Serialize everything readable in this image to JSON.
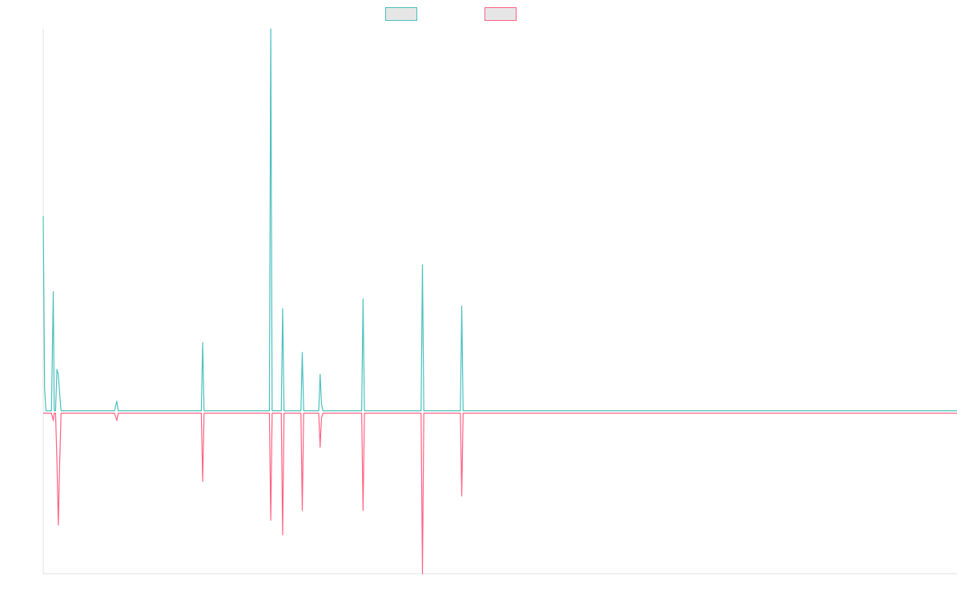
{
  "colors": {
    "series_a": "#4bc0c0",
    "series_b": "#ff6384",
    "axis": "#e0e0e0",
    "legend_fill": "#e6e6e6"
  },
  "chart_data": {
    "type": "line",
    "title": "",
    "xlabel": "",
    "ylabel": "",
    "grid": false,
    "legend_position": "top",
    "x_range": [
      0,
      1000
    ],
    "ylim": [
      -0.66,
      1.58
    ],
    "x_ticks_shown": false,
    "y_ticks_shown": false,
    "series": [
      {
        "color": "#4bc0c0",
        "points": [
          [
            0,
            0.81
          ],
          [
            1.5,
            0.1
          ],
          [
            3,
            0.01
          ],
          [
            9,
            0.01
          ],
          [
            11,
            0.5
          ],
          [
            12,
            0.01
          ],
          [
            13.5,
            0.01
          ],
          [
            15,
            0.18
          ],
          [
            16.5,
            0.16
          ],
          [
            18,
            0.08
          ],
          [
            19.5,
            0.01
          ],
          [
            76,
            0.01
          ],
          [
            78,
            0.01
          ],
          [
            80.5,
            0.05
          ],
          [
            82,
            0.01
          ],
          [
            173,
            0.01
          ],
          [
            174.5,
            0.29
          ],
          [
            176,
            0.01
          ],
          [
            247.5,
            0.01
          ],
          [
            249,
            1.58
          ],
          [
            250.5,
            0.01
          ],
          [
            260.5,
            0.01
          ],
          [
            262,
            0.43
          ],
          [
            263.5,
            0.01
          ],
          [
            282,
            0.01
          ],
          [
            283.5,
            0.25
          ],
          [
            285,
            0.01
          ],
          [
            301.5,
            0.01
          ],
          [
            303,
            0.16
          ],
          [
            304.5,
            0.04
          ],
          [
            306,
            0.01
          ],
          [
            348.5,
            0.01
          ],
          [
            350,
            0.47
          ],
          [
            351.5,
            0.01
          ],
          [
            413.5,
            0.01
          ],
          [
            415,
            0.61
          ],
          [
            416.5,
            0.01
          ],
          [
            456.5,
            0.01
          ],
          [
            458,
            0.44
          ],
          [
            459.5,
            0.01
          ],
          [
            1000,
            0.01
          ]
        ]
      },
      {
        "color": "#ff6384",
        "points": [
          [
            0,
            0
          ],
          [
            3,
            0
          ],
          [
            5,
            0
          ],
          [
            9,
            0
          ],
          [
            11,
            -0.03
          ],
          [
            12,
            0
          ],
          [
            13.5,
            0
          ],
          [
            15,
            -0.2
          ],
          [
            16.5,
            -0.46
          ],
          [
            18,
            -0.2
          ],
          [
            19.5,
            0
          ],
          [
            76,
            0
          ],
          [
            78,
            0
          ],
          [
            80.5,
            -0.03
          ],
          [
            82,
            0
          ],
          [
            173,
            0
          ],
          [
            174.5,
            -0.28
          ],
          [
            176,
            0
          ],
          [
            247.5,
            0
          ],
          [
            249,
            -0.44
          ],
          [
            250.5,
            0
          ],
          [
            260.5,
            0
          ],
          [
            262,
            -0.5
          ],
          [
            263.5,
            0
          ],
          [
            282,
            0
          ],
          [
            283.5,
            -0.4
          ],
          [
            285,
            0
          ],
          [
            301.5,
            0
          ],
          [
            303,
            -0.14
          ],
          [
            304.5,
            -0.02
          ],
          [
            306,
            0
          ],
          [
            348.5,
            0
          ],
          [
            350,
            -0.4
          ],
          [
            351.5,
            0
          ],
          [
            413.5,
            0
          ],
          [
            415,
            -0.66
          ],
          [
            416.5,
            0
          ],
          [
            456.5,
            0
          ],
          [
            458,
            -0.34
          ],
          [
            459.5,
            0
          ],
          [
            1000,
            0
          ]
        ]
      }
    ]
  }
}
